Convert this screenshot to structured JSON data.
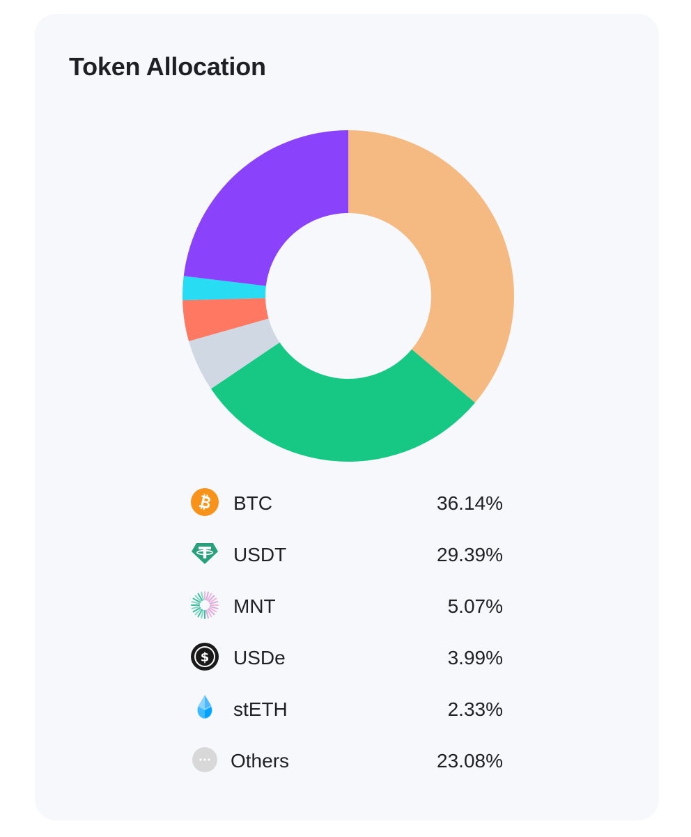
{
  "card": {
    "title": "Token Allocation"
  },
  "chart_data": {
    "type": "pie",
    "title": "Token Allocation",
    "donut": true,
    "start_angle": "top",
    "direction": "clockwise",
    "categories": [
      "BTC",
      "USDT",
      "MNT",
      "USDe",
      "stETH",
      "Others"
    ],
    "values": [
      36.14,
      29.39,
      5.07,
      3.99,
      2.33,
      23.08
    ],
    "value_labels": [
      "36.14%",
      "29.39%",
      "5.07%",
      "3.99%",
      "2.33%",
      "23.08%"
    ],
    "colors": [
      "#f5b982",
      "#17c884",
      "#d0d8e4",
      "#fe7862",
      "#27dcf3",
      "#8a43fb"
    ],
    "legend_position": "below"
  },
  "legend": [
    {
      "label": "BTC",
      "value": "36.14%",
      "icon": "bitcoin-icon"
    },
    {
      "label": "USDT",
      "value": "29.39%",
      "icon": "tether-icon"
    },
    {
      "label": "MNT",
      "value": "5.07%",
      "icon": "mantle-icon"
    },
    {
      "label": "USDe",
      "value": "3.99%",
      "icon": "ethena-usde-icon"
    },
    {
      "label": "stETH",
      "value": "2.33%",
      "icon": "lido-steth-icon"
    },
    {
      "label": "Others",
      "value": "23.08%",
      "icon": "more-dots-icon"
    }
  ],
  "icon_colors": {
    "bitcoin": "#f7931a",
    "tether": "#26a17b",
    "usde": "#1a1a1a",
    "steth_light": "#8ad4ff",
    "steth_dark": "#00a3ff",
    "others": "#d8d8d8"
  }
}
